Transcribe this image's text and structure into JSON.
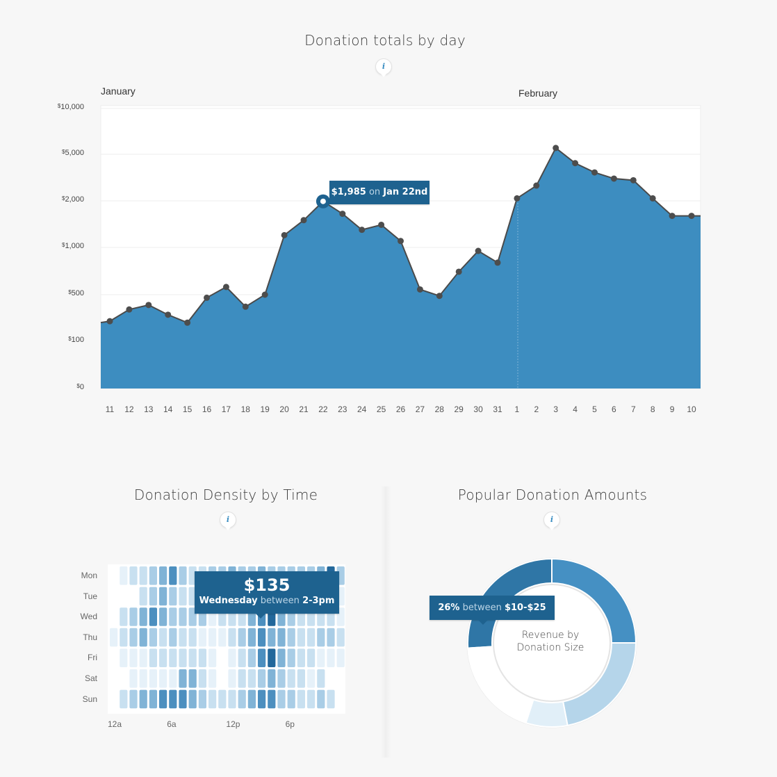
{
  "line_chart": {
    "title": "Donation totals by day",
    "info_icon": "info-icon",
    "month_labels": [
      "January",
      "February"
    ],
    "y_ticks": [
      "10,000",
      "5,000",
      "2,000",
      "1,000",
      "500",
      "100",
      "0"
    ],
    "currency_symbol": "$",
    "x_ticks": [
      "11",
      "12",
      "13",
      "14",
      "15",
      "16",
      "17",
      "18",
      "19",
      "20",
      "21",
      "22",
      "23",
      "24",
      "25",
      "26",
      "27",
      "28",
      "29",
      "30",
      "31",
      "1",
      "2",
      "3",
      "4",
      "5",
      "6",
      "7",
      "8",
      "9",
      "10"
    ],
    "tooltip": {
      "amount": "$1,985",
      "on": "on",
      "date": "Jan 22nd"
    }
  },
  "heatmap": {
    "title": "Donation Density by Time",
    "days": [
      "Mon",
      "Tue",
      "Wed",
      "Thu",
      "Fri",
      "Sat",
      "Sun"
    ],
    "hour_labels": [
      "12a",
      "6a",
      "12p",
      "6p"
    ],
    "tooltip": {
      "amount": "$135",
      "day": "Wednesday",
      "between": "between",
      "range": "2-3pm"
    }
  },
  "donut": {
    "title": "Popular Donation Amounts",
    "center_label_line1": "Revenue by",
    "center_label_line2": "Donation Size",
    "tooltip": {
      "percent": "26%",
      "between": "between",
      "range": "$10-$25"
    }
  },
  "colors": {
    "area": "#3d8dc0",
    "line": "#4a4a4a",
    "tooltip": "#1e628f",
    "point": "#4d4d4d"
  },
  "chart_data": [
    {
      "type": "area",
      "title": "Donation totals by day",
      "x": [
        "Jan 11",
        "Jan 12",
        "Jan 13",
        "Jan 14",
        "Jan 15",
        "Jan 16",
        "Jan 17",
        "Jan 18",
        "Jan 19",
        "Jan 20",
        "Jan 21",
        "Jan 22",
        "Jan 23",
        "Jan 24",
        "Jan 25",
        "Jan 26",
        "Jan 27",
        "Jan 28",
        "Jan 29",
        "Jan 30",
        "Jan 31",
        "Feb 1",
        "Feb 2",
        "Feb 3",
        "Feb 4",
        "Feb 5",
        "Feb 6",
        "Feb 7",
        "Feb 8",
        "Feb 9",
        "Feb 10"
      ],
      "values": [
        200,
        300,
        350,
        250,
        190,
        450,
        560,
        330,
        500,
        1200,
        1500,
        1985,
        1650,
        1300,
        1400,
        1100,
        540,
        480,
        700,
        950,
        800,
        2100,
        2700,
        5500,
        4200,
        3500,
        3100,
        3000,
        2100,
        1600,
        1600
      ],
      "y_scale": "log",
      "y_ticks": [
        0,
        100,
        500,
        1000,
        2000,
        5000,
        10000
      ],
      "grid": true
    },
    {
      "type": "heatmap",
      "title": "Donation Density by Time",
      "rows": [
        "Mon",
        "Tue",
        "Wed",
        "Thu",
        "Fri",
        "Sat",
        "Sun"
      ],
      "columns_hours": 24,
      "intensity": [
        [
          0,
          1,
          2,
          2,
          3,
          4,
          5,
          3,
          2,
          2,
          3,
          3,
          4,
          3,
          3,
          4,
          3,
          3,
          3,
          3,
          3,
          4,
          6,
          3
        ],
        [
          0,
          0,
          0,
          2,
          3,
          4,
          3,
          2,
          2,
          3,
          3,
          3,
          3,
          4,
          5,
          4,
          3,
          3,
          2,
          2,
          2,
          3,
          2,
          1
        ],
        [
          0,
          2,
          3,
          4,
          5,
          4,
          3,
          3,
          3,
          3,
          1,
          2,
          2,
          2,
          4,
          5,
          6,
          4,
          3,
          2,
          2,
          2,
          2,
          1
        ],
        [
          1,
          2,
          3,
          4,
          3,
          2,
          3,
          2,
          2,
          1,
          1,
          1,
          2,
          3,
          4,
          5,
          4,
          4,
          3,
          2,
          2,
          3,
          3,
          2
        ],
        [
          0,
          1,
          1,
          1,
          2,
          2,
          2,
          2,
          2,
          2,
          1,
          0,
          1,
          2,
          3,
          5,
          6,
          4,
          3,
          2,
          2,
          1,
          1,
          1
        ],
        [
          0,
          0,
          1,
          1,
          1,
          1,
          1,
          4,
          4,
          2,
          1,
          0,
          1,
          2,
          2,
          3,
          4,
          3,
          2,
          2,
          1,
          2,
          0,
          0
        ],
        [
          0,
          2,
          3,
          4,
          4,
          5,
          5,
          5,
          4,
          3,
          2,
          2,
          2,
          3,
          4,
          5,
          5,
          3,
          3,
          2,
          2,
          3,
          2,
          0
        ]
      ],
      "x_labels": [
        "12a",
        "6a",
        "12p",
        "6p"
      ]
    },
    {
      "type": "pie",
      "title": "Popular Donation Amounts",
      "donut": true,
      "slices": [
        {
          "share": 26,
          "color": "#2f76a6"
        },
        {
          "share": 25,
          "color": "#4590c3"
        },
        {
          "share": 22,
          "color": "#b5d5ea"
        },
        {
          "share": 8,
          "color": "#e1eff8"
        },
        {
          "share": 19,
          "color": "#ffffff"
        }
      ]
    }
  ]
}
